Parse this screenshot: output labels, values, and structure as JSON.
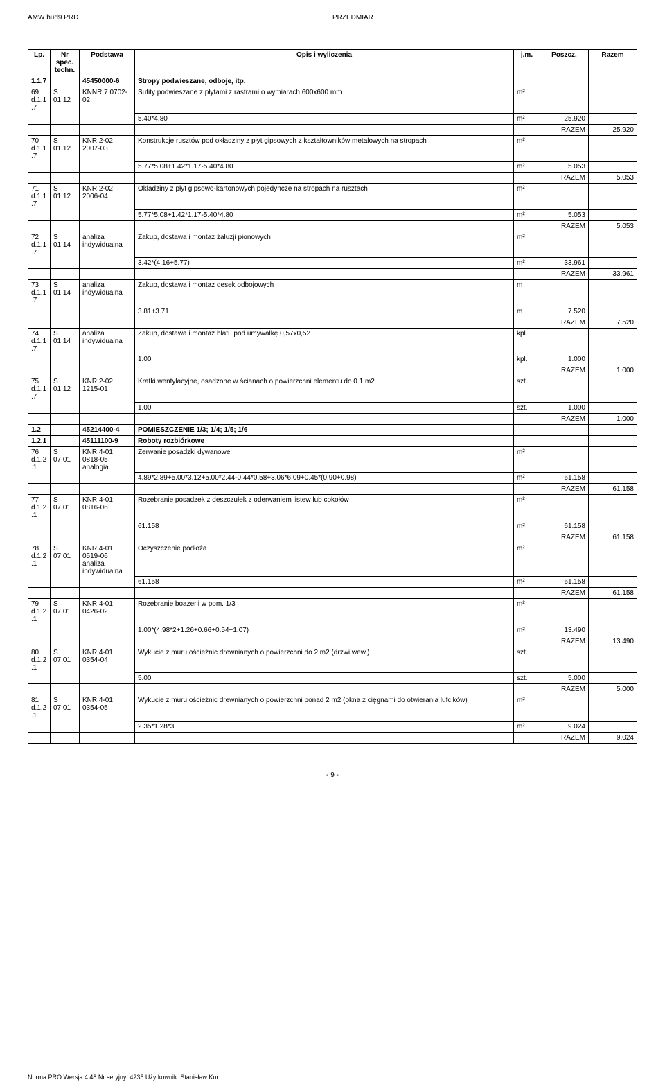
{
  "header": {
    "left": "AMW bud9.PRD",
    "center": "PRZEDMIAR"
  },
  "table": {
    "cols": [
      {
        "label": "Lp."
      },
      {
        "label": "Nr spec. techn."
      },
      {
        "label": "Podstawa"
      },
      {
        "label": "Opis i wyliczenia"
      },
      {
        "label": "j.m."
      },
      {
        "label": "Poszcz."
      },
      {
        "label": "Razem"
      }
    ],
    "rows": [
      {
        "type": "section",
        "lp": "1.1.7",
        "podstawa": "45450000-6",
        "opis": "Stropy podwieszane, odboje, itp.",
        "bold": true
      },
      {
        "type": "item",
        "lp": "69 d.1.1.7",
        "nr": "S 01.12",
        "podstawa": "KNNR 7 0702-02",
        "opis": "Sufity podwieszane z płytami z rastrami o wymiarach 600x600 mm",
        "jm": "m²"
      },
      {
        "type": "calc",
        "opis": "5.40*4.80",
        "jm": "m²",
        "poszcz": "25.920"
      },
      {
        "type": "razem",
        "razem": "25.920"
      },
      {
        "type": "item",
        "lp": "70 d.1.1.7",
        "nr": "S 01.12",
        "podstawa": "KNR 2-02 2007-03",
        "opis": "Konstrukcje rusztów pod okładziny z płyt gipsowych z kształtowników metalowych na stropach",
        "jm": "m²"
      },
      {
        "type": "calc",
        "opis": "5.77*5.08+1.42*1.17-5.40*4.80",
        "jm": "m²",
        "poszcz": "5.053"
      },
      {
        "type": "razem",
        "razem": "5.053"
      },
      {
        "type": "item",
        "lp": "71 d.1.1.7",
        "nr": "S 01.12",
        "podstawa": "KNR 2-02 2006-04",
        "opis": "Okładziny z płyt gipsowo-kartonowych pojedyncze na stropach na rusztach",
        "jm": "m²"
      },
      {
        "type": "calc",
        "opis": "5.77*5.08+1.42*1.17-5.40*4.80",
        "jm": "m²",
        "poszcz": "5.053"
      },
      {
        "type": "razem",
        "razem": "5.053"
      },
      {
        "type": "item",
        "lp": "72 d.1.1.7",
        "nr": "S 01.14",
        "podstawa": "analiza indywidualna",
        "opis": "Zakup, dostawa i montaż żaluzji pionowych",
        "jm": "m²"
      },
      {
        "type": "calc",
        "opis": "3.42*(4.16+5.77)",
        "jm": "m²",
        "poszcz": "33.961"
      },
      {
        "type": "razem",
        "razem": "33.961"
      },
      {
        "type": "item",
        "lp": "73 d.1.1.7",
        "nr": "S 01.14",
        "podstawa": "analiza indywidualna",
        "opis": "Zakup, dostawa i montaż desek odbojowych",
        "jm": "m"
      },
      {
        "type": "calc",
        "opis": "3.81+3.71",
        "jm": "m",
        "poszcz": "7.520"
      },
      {
        "type": "razem",
        "razem": "7.520"
      },
      {
        "type": "item",
        "lp": "74 d.1.1.7",
        "nr": "S 01.14",
        "podstawa": "analiza indywidualna",
        "opis": "Zakup, dostawa i montaż blatu pod umywalkę 0,57x0,52",
        "jm": "kpl."
      },
      {
        "type": "calc",
        "opis": "1.00",
        "jm": "kpl.",
        "poszcz": "1.000"
      },
      {
        "type": "razem",
        "razem": "1.000"
      },
      {
        "type": "item",
        "lp": "75 d.1.1.7",
        "nr": "S 01.12",
        "podstawa": "KNR 2-02 1215-01",
        "opis": "Kratki wentylacyjne, osadzone w ścianach o powierzchni elementu do 0.1 m2",
        "jm": "szt."
      },
      {
        "type": "calc",
        "opis": "1.00",
        "jm": "szt.",
        "poszcz": "1.000"
      },
      {
        "type": "razem",
        "razem": "1.000"
      },
      {
        "type": "section",
        "lp": "1.2",
        "podstawa": "45214400-4",
        "opis": "POMIESZCZENIE 1/3; 1/4; 1/5; 1/6",
        "bold": true
      },
      {
        "type": "section",
        "lp": "1.2.1",
        "podstawa": "45111100-9",
        "opis": "Roboty rozbiórkowe",
        "bold": true
      },
      {
        "type": "item",
        "lp": "76 d.1.2.1",
        "nr": "S 07.01",
        "podstawa": "KNR 4-01 0818-05 analogia",
        "opis": "Zerwanie posadzki dywanowej",
        "jm": "m²"
      },
      {
        "type": "calc",
        "opis": "4.89*2.89+5.00*3.12+5.00*2.44-0.44*0.58+3.06*6.09+0.45*(0.90+0.98)",
        "jm": "m²",
        "poszcz": "61.158"
      },
      {
        "type": "razem",
        "razem": "61.158"
      },
      {
        "type": "item",
        "lp": "77 d.1.2.1",
        "nr": "S 07.01",
        "podstawa": "KNR 4-01 0816-06",
        "opis": "Rozebranie posadzek z deszczułek z oderwaniem listew lub cokołów",
        "jm": "m²"
      },
      {
        "type": "calc",
        "opis": "61.158",
        "jm": "m²",
        "poszcz": "61.158"
      },
      {
        "type": "razem",
        "razem": "61.158"
      },
      {
        "type": "item",
        "lp": "78 d.1.2.1",
        "nr": "S 07.01",
        "podstawa": "KNR 4-01 0519-06 analiza indywidualna",
        "opis": "Oczyszczenie podłoża",
        "jm": "m²"
      },
      {
        "type": "calc",
        "opis": "61.158",
        "jm": "m²",
        "poszcz": "61.158"
      },
      {
        "type": "razem",
        "razem": "61.158"
      },
      {
        "type": "item",
        "lp": "79 d.1.2.1",
        "nr": "S 07.01",
        "podstawa": "KNR 4-01 0426-02",
        "opis": "Rozebranie boazerii w pom. 1/3",
        "jm": "m²"
      },
      {
        "type": "calc",
        "opis": "1.00*(4.98*2+1.26+0.66+0.54+1.07)",
        "jm": "m²",
        "poszcz": "13.490"
      },
      {
        "type": "razem",
        "razem": "13.490"
      },
      {
        "type": "item",
        "lp": "80 d.1.2.1",
        "nr": "S 07.01",
        "podstawa": "KNR 4-01 0354-04",
        "opis": "Wykucie z muru ościeżnic drewnianych o powierzchni do 2 m2 (drzwi wew.)",
        "jm": "szt."
      },
      {
        "type": "calc",
        "opis": "5.00",
        "jm": "szt.",
        "poszcz": "5.000"
      },
      {
        "type": "razem",
        "razem": "5.000"
      },
      {
        "type": "item",
        "lp": "81 d.1.2.1",
        "nr": "S 07.01",
        "podstawa": "KNR 4-01 0354-05",
        "opis": "Wykucie z muru ościeżnic drewnianych o powierzchni ponad 2 m2 (okna z cięgnami do otwierania lufcików)",
        "jm": "m²"
      },
      {
        "type": "calc",
        "opis": "2.35*1.28*3",
        "jm": "m²",
        "poszcz": "9.024"
      },
      {
        "type": "razem",
        "razem": "9.024"
      }
    ]
  },
  "razem_label": "RAZEM",
  "page_num": "- 9 -",
  "footer": "Norma PRO Wersja 4.48 Nr seryjny: 4235 Użytkownik: Stanisław Kur"
}
